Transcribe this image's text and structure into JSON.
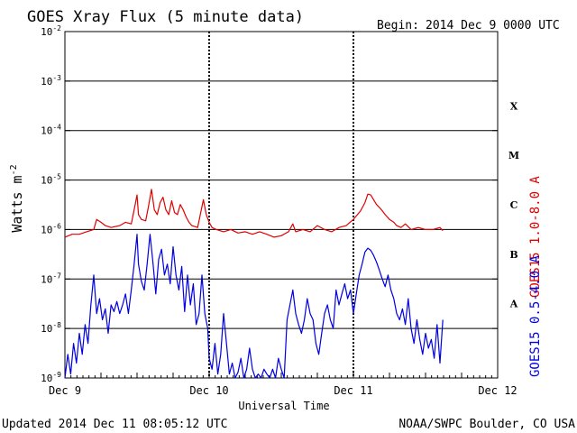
{
  "chart_data": {
    "type": "line",
    "title": "GOES Xray Flux (5 minute data)",
    "begin_label": "Begin:",
    "begin_value": "2014 Dec 9 0000 UTC",
    "xlabel": "Universal Time",
    "ylabel": "Watts m",
    "ylabel_exponent": "-2",
    "y_scale": "log",
    "ylim": [
      1e-09,
      0.01
    ],
    "y_ticks": [
      {
        "base": "10",
        "exp": "-9"
      },
      {
        "base": "10",
        "exp": "-8"
      },
      {
        "base": "10",
        "exp": "-7"
      },
      {
        "base": "10",
        "exp": "-6"
      },
      {
        "base": "10",
        "exp": "-5"
      },
      {
        "base": "10",
        "exp": "-4"
      },
      {
        "base": "10",
        "exp": "-3"
      },
      {
        "base": "10",
        "exp": "-2"
      }
    ],
    "x_ticks": [
      "Dec 9",
      "Dec 10",
      "Dec 11",
      "Dec 12"
    ],
    "x_range_days": [
      0,
      3
    ],
    "grid": true,
    "flare_classes": [
      "A",
      "B",
      "C",
      "M",
      "X"
    ],
    "series": [
      {
        "name": "GOES15 1.0-8.0 A",
        "color": "#e00000",
        "points": [
          [
            0.0,
            7e-07
          ],
          [
            0.05,
            8e-07
          ],
          [
            0.1,
            8e-07
          ],
          [
            0.15,
            9e-07
          ],
          [
            0.2,
            1e-06
          ],
          [
            0.22,
            1.6e-06
          ],
          [
            0.25,
            1.4e-06
          ],
          [
            0.28,
            1.2e-06
          ],
          [
            0.32,
            1.1e-06
          ],
          [
            0.38,
            1.2e-06
          ],
          [
            0.42,
            1.4e-06
          ],
          [
            0.46,
            1.3e-06
          ],
          [
            0.48,
            2.5e-06
          ],
          [
            0.5,
            5e-06
          ],
          [
            0.51,
            2e-06
          ],
          [
            0.53,
            1.6e-06
          ],
          [
            0.56,
            1.5e-06
          ],
          [
            0.58,
            3e-06
          ],
          [
            0.6,
            6.5e-06
          ],
          [
            0.62,
            2.5e-06
          ],
          [
            0.64,
            2e-06
          ],
          [
            0.66,
            3.5e-06
          ],
          [
            0.68,
            4.5e-06
          ],
          [
            0.7,
            2.5e-06
          ],
          [
            0.72,
            2e-06
          ],
          [
            0.74,
            3.8e-06
          ],
          [
            0.76,
            2.2e-06
          ],
          [
            0.78,
            2e-06
          ],
          [
            0.8,
            3.2e-06
          ],
          [
            0.82,
            2.5e-06
          ],
          [
            0.84,
            1.8e-06
          ],
          [
            0.86,
            1.4e-06
          ],
          [
            0.88,
            1.2e-06
          ],
          [
            0.92,
            1.1e-06
          ],
          [
            0.96,
            4e-06
          ],
          [
            0.98,
            2e-06
          ],
          [
            1.0,
            1.4e-06
          ],
          [
            1.02,
            1.1e-06
          ],
          [
            1.05,
            1e-06
          ],
          [
            1.1,
            9e-07
          ],
          [
            1.15,
            1e-06
          ],
          [
            1.2,
            8.5e-07
          ],
          [
            1.25,
            9e-07
          ],
          [
            1.3,
            8e-07
          ],
          [
            1.35,
            9e-07
          ],
          [
            1.4,
            8e-07
          ],
          [
            1.45,
            7e-07
          ],
          [
            1.5,
            7.5e-07
          ],
          [
            1.55,
            9e-07
          ],
          [
            1.58,
            1.3e-06
          ],
          [
            1.6,
            9e-07
          ],
          [
            1.65,
            1e-06
          ],
          [
            1.7,
            9e-07
          ],
          [
            1.75,
            1.2e-06
          ],
          [
            1.8,
            1e-06
          ],
          [
            1.85,
            9e-07
          ],
          [
            1.9,
            1.1e-06
          ],
          [
            1.95,
            1.2e-06
          ],
          [
            2.0,
            1.6e-06
          ],
          [
            2.05,
            2.4e-06
          ],
          [
            2.08,
            3.5e-06
          ],
          [
            2.1,
            5.2e-06
          ],
          [
            2.12,
            5e-06
          ],
          [
            2.14,
            4e-06
          ],
          [
            2.16,
            3.2e-06
          ],
          [
            2.18,
            2.8e-06
          ],
          [
            2.2,
            2.4e-06
          ],
          [
            2.22,
            2e-06
          ],
          [
            2.25,
            1.6e-06
          ],
          [
            2.28,
            1.4e-06
          ],
          [
            2.3,
            1.2e-06
          ],
          [
            2.33,
            1.1e-06
          ],
          [
            2.36,
            1.3e-06
          ],
          [
            2.4,
            1e-06
          ],
          [
            2.45,
            1.1e-06
          ],
          [
            2.5,
            1e-06
          ],
          [
            2.55,
            1e-06
          ],
          [
            2.6,
            1.1e-06
          ],
          [
            2.62,
            9.5e-07
          ]
        ]
      },
      {
        "name": "GOES15 0.5-4.0 A",
        "color": "#0000e0",
        "points": [
          [
            0.0,
            1e-09
          ],
          [
            0.02,
            3e-09
          ],
          [
            0.04,
            1.2e-09
          ],
          [
            0.06,
            5e-09
          ],
          [
            0.08,
            2e-09
          ],
          [
            0.1,
            8e-09
          ],
          [
            0.12,
            3e-09
          ],
          [
            0.14,
            1.2e-08
          ],
          [
            0.16,
            5e-09
          ],
          [
            0.18,
            3e-08
          ],
          [
            0.2,
            1.2e-07
          ],
          [
            0.22,
            2e-08
          ],
          [
            0.24,
            4e-08
          ],
          [
            0.26,
            1.5e-08
          ],
          [
            0.28,
            2.5e-08
          ],
          [
            0.3,
            8e-09
          ],
          [
            0.32,
            3e-08
          ],
          [
            0.34,
            2.2e-08
          ],
          [
            0.36,
            3.5e-08
          ],
          [
            0.38,
            2e-08
          ],
          [
            0.4,
            3e-08
          ],
          [
            0.42,
            5e-08
          ],
          [
            0.44,
            2e-08
          ],
          [
            0.46,
            6e-08
          ],
          [
            0.48,
            2e-07
          ],
          [
            0.5,
            8e-07
          ],
          [
            0.51,
            2e-07
          ],
          [
            0.53,
            9e-08
          ],
          [
            0.55,
            6e-08
          ],
          [
            0.57,
            2e-07
          ],
          [
            0.59,
            8e-07
          ],
          [
            0.61,
            2.2e-07
          ],
          [
            0.63,
            5e-08
          ],
          [
            0.65,
            2.5e-07
          ],
          [
            0.67,
            4e-07
          ],
          [
            0.69,
            1.2e-07
          ],
          [
            0.71,
            2e-07
          ],
          [
            0.73,
            8e-08
          ],
          [
            0.75,
            4.5e-07
          ],
          [
            0.77,
            1.2e-07
          ],
          [
            0.79,
            6e-08
          ],
          [
            0.81,
            1.8e-07
          ],
          [
            0.83,
            2.2e-08
          ],
          [
            0.85,
            1.2e-07
          ],
          [
            0.87,
            3e-08
          ],
          [
            0.89,
            8e-08
          ],
          [
            0.91,
            1.2e-08
          ],
          [
            0.93,
            2e-08
          ],
          [
            0.95,
            1.2e-07
          ],
          [
            0.97,
            2e-08
          ],
          [
            0.99,
            1e-08
          ],
          [
            1.0,
            2.5e-09
          ],
          [
            1.02,
            1.5e-09
          ],
          [
            1.04,
            5e-09
          ],
          [
            1.06,
            1.2e-09
          ],
          [
            1.08,
            3e-09
          ],
          [
            1.1,
            2e-08
          ],
          [
            1.12,
            5e-09
          ],
          [
            1.14,
            1.2e-09
          ],
          [
            1.16,
            2e-09
          ],
          [
            1.18,
            1e-09
          ],
          [
            1.2,
            1.3e-09
          ],
          [
            1.22,
            2.5e-09
          ],
          [
            1.24,
            1e-09
          ],
          [
            1.26,
            1.5e-09
          ],
          [
            1.28,
            4e-09
          ],
          [
            1.3,
            1.5e-09
          ],
          [
            1.32,
            1e-09
          ],
          [
            1.34,
            1.2e-09
          ],
          [
            1.36,
            1e-09
          ],
          [
            1.38,
            1.5e-09
          ],
          [
            1.4,
            1.2e-09
          ],
          [
            1.42,
            1e-09
          ],
          [
            1.44,
            1.5e-09
          ],
          [
            1.46,
            1e-09
          ],
          [
            1.48,
            2.5e-09
          ],
          [
            1.5,
            1.5e-09
          ],
          [
            1.52,
            1e-09
          ],
          [
            1.54,
            1.5e-08
          ],
          [
            1.56,
            3e-08
          ],
          [
            1.58,
            6e-08
          ],
          [
            1.6,
            2e-08
          ],
          [
            1.62,
            1.2e-08
          ],
          [
            1.64,
            8e-09
          ],
          [
            1.66,
            1.5e-08
          ],
          [
            1.68,
            4e-08
          ],
          [
            1.7,
            2e-08
          ],
          [
            1.72,
            1.5e-08
          ],
          [
            1.74,
            5e-09
          ],
          [
            1.76,
            3e-09
          ],
          [
            1.78,
            8e-09
          ],
          [
            1.8,
            2e-08
          ],
          [
            1.82,
            3e-08
          ],
          [
            1.84,
            1.5e-08
          ],
          [
            1.86,
            1e-08
          ],
          [
            1.88,
            6e-08
          ],
          [
            1.9,
            3e-08
          ],
          [
            1.92,
            5e-08
          ],
          [
            1.94,
            8e-08
          ],
          [
            1.96,
            4e-08
          ],
          [
            1.98,
            6e-08
          ],
          [
            2.0,
            2e-08
          ],
          [
            2.02,
            5e-08
          ],
          [
            2.04,
            1.2e-07
          ],
          [
            2.06,
            2e-07
          ],
          [
            2.08,
            3.5e-07
          ],
          [
            2.1,
            4.2e-07
          ],
          [
            2.12,
            3.8e-07
          ],
          [
            2.14,
            3e-07
          ],
          [
            2.16,
            2.2e-07
          ],
          [
            2.18,
            1.5e-07
          ],
          [
            2.2,
            1e-07
          ],
          [
            2.22,
            7e-08
          ],
          [
            2.24,
            1.2e-07
          ],
          [
            2.26,
            6e-08
          ],
          [
            2.28,
            4e-08
          ],
          [
            2.3,
            2e-08
          ],
          [
            2.32,
            1.5e-08
          ],
          [
            2.34,
            2.5e-08
          ],
          [
            2.36,
            1.2e-08
          ],
          [
            2.38,
            4e-08
          ],
          [
            2.4,
            1e-08
          ],
          [
            2.42,
            5e-09
          ],
          [
            2.44,
            1.5e-08
          ],
          [
            2.46,
            6e-09
          ],
          [
            2.48,
            3e-09
          ],
          [
            2.5,
            8e-09
          ],
          [
            2.52,
            4e-09
          ],
          [
            2.54,
            6e-09
          ],
          [
            2.56,
            2.5e-09
          ],
          [
            2.58,
            1.2e-08
          ],
          [
            2.6,
            2e-09
          ],
          [
            2.62,
            1.5e-08
          ]
        ]
      }
    ]
  },
  "footer": {
    "updated": "Updated 2014 Dec 11 08:05:12 UTC",
    "source": "NOAA/SWPC Boulder, CO USA"
  }
}
